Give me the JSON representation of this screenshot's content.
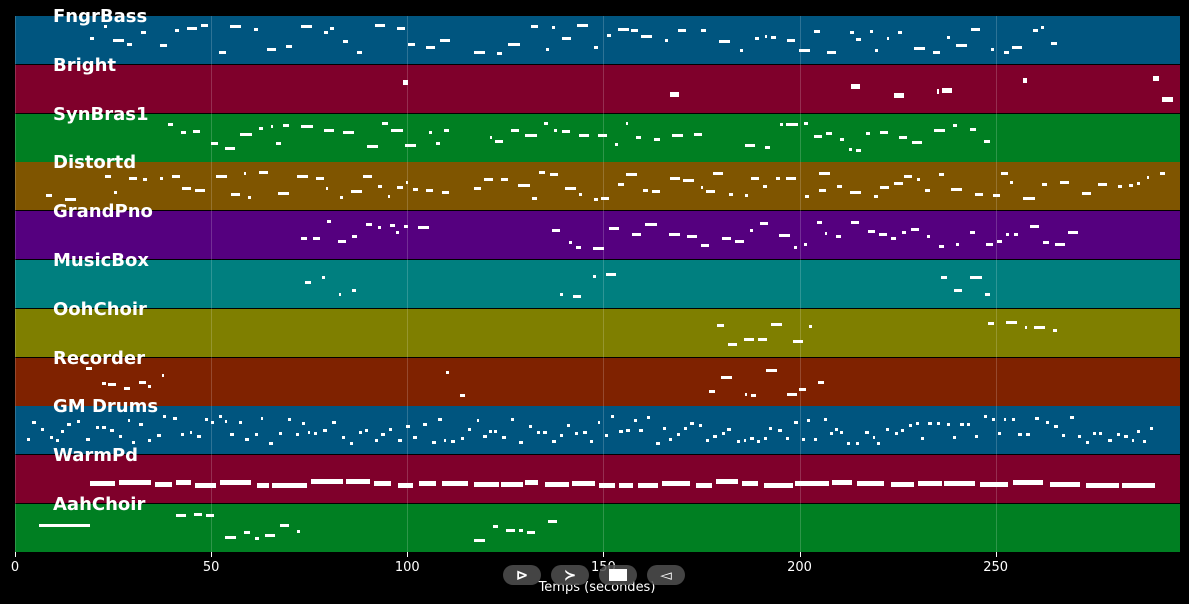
{
  "axis": {
    "xlabel": "Temps (secondes)",
    "xlim": [
      0,
      297
    ],
    "ticks": [
      "0",
      "50",
      "100",
      "150",
      "200",
      "250"
    ],
    "tick_values": [
      0,
      50,
      100,
      150,
      200,
      250
    ]
  },
  "tracks": [
    {
      "name": "FngrBass",
      "color": "#00557f"
    },
    {
      "name": "Bright",
      "color": "#7f002b"
    },
    {
      "name": "SynBras1",
      "color": "#007f22"
    },
    {
      "name": "Distortd",
      "color": "#7f5500"
    },
    {
      "name": "GrandPno",
      "color": "#55007f"
    },
    {
      "name": "MusicBox",
      "color": "#007f7f"
    },
    {
      "name": "OohChoir",
      "color": "#7f7f00"
    },
    {
      "name": "Recorder",
      "color": "#7f2200"
    },
    {
      "name": "GM Drums",
      "color": "#00557f"
    },
    {
      "name": "WarmPd",
      "color": "#7f002b"
    },
    {
      "name": "AahChoir",
      "color": "#007f22"
    }
  ],
  "controls": [
    {
      "name": "play-button",
      "glyph": "⊳"
    },
    {
      "name": "forward-button",
      "glyph": "≻"
    },
    {
      "name": "stop-button",
      "glyph": ""
    },
    {
      "name": "rewind-button",
      "glyph": "◅"
    }
  ]
}
